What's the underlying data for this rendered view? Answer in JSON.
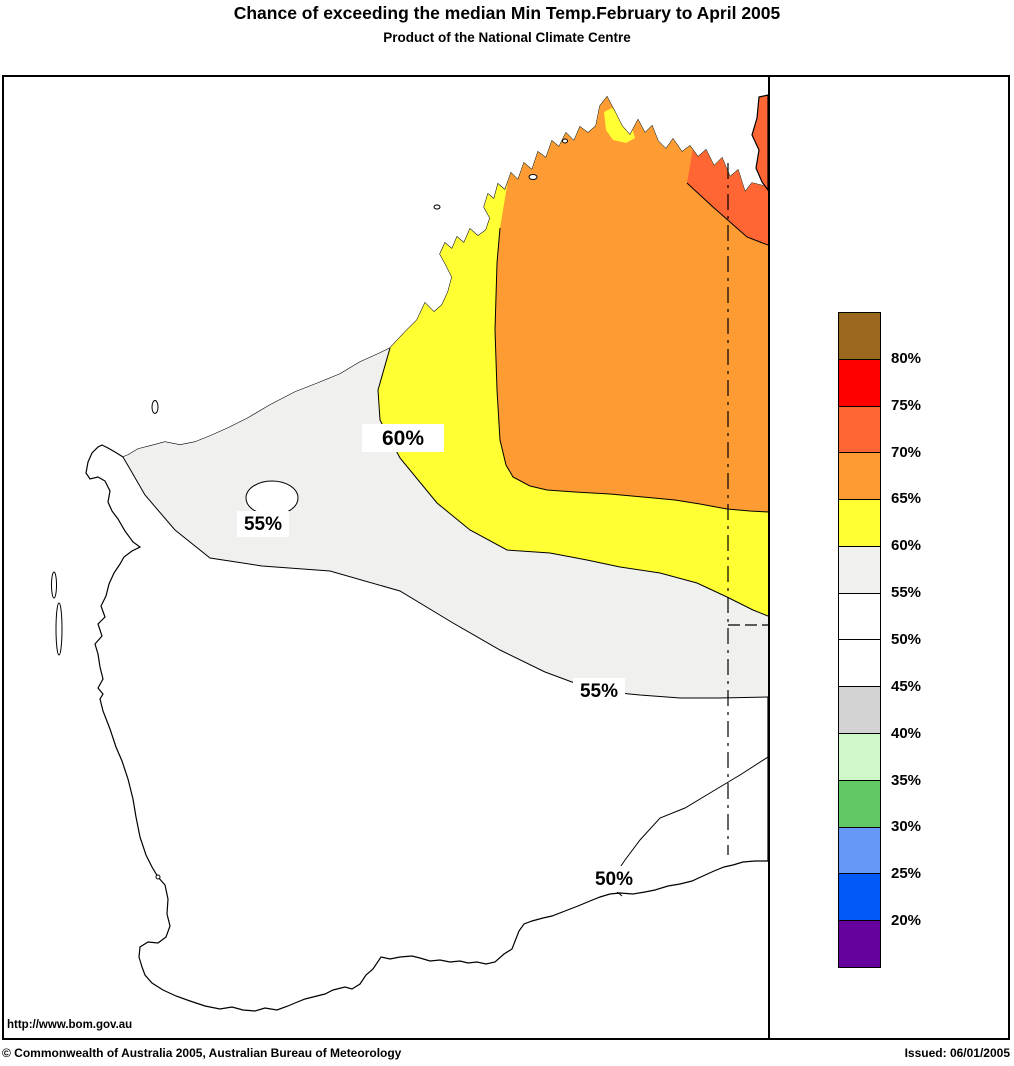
{
  "title": "Chance of exceeding the median Min Temp.February to April 2005",
  "subtitle": "Product of the National Climate Centre",
  "map": {
    "label_60": "60%",
    "label_55a": "55%",
    "label_55b": "55%",
    "label_50": "50%"
  },
  "legend": {
    "labels": [
      "80%",
      "75%",
      "70%",
      "65%",
      "60%",
      "55%",
      "50%",
      "45%",
      "40%",
      "35%",
      "30%",
      "25%",
      "20%"
    ],
    "colors": [
      "#9A671F",
      "#FF0000",
      "#FF6633",
      "#FF9B33",
      "#FFFF33",
      "#F0F0EF",
      "#FFFFFF",
      "#FFFFFF",
      "#D3D3D3",
      "#CFF8C8",
      "#63C765",
      "#6598F8",
      "#0359F5",
      "#65019D"
    ]
  },
  "colors": {
    "ocean": "#FFFFFF",
    "land_default": "#FFFFFF",
    "line": "#000000"
  },
  "footer": {
    "url": "http://www.bom.gov.au",
    "copyright": "© Commonwealth of Australia 2005, Australian Bureau of Meteorology",
    "issued": "Issued: 06/01/2005"
  },
  "chart_data": {
    "type": "contour-map",
    "title": "Chance of exceeding the median Min Temp.February to April 2005",
    "subtitle": "Product of the National Climate Centre",
    "region": "Western Australia",
    "variable": "Chance of exceeding the median minimum temperature (%)",
    "period": "February to April 2005",
    "issued": "06/01/2005",
    "legend_thresholds_percent": [
      80,
      75,
      70,
      65,
      60,
      55,
      50,
      45,
      40,
      35,
      30,
      25,
      20
    ],
    "legend_band_colors_top_to_bottom": [
      "#9A671F",
      "#FF0000",
      "#FF6633",
      "#FF9B33",
      "#FFFF33",
      "#F0F0EF",
      "#FFFFFF",
      "#FFFFFF",
      "#D3D3D3",
      "#CFF8C8",
      "#63C765",
      "#6598F8",
      "#0359F5",
      "#65019D"
    ],
    "contour_labels_on_map_percent": [
      60,
      55,
      55,
      50
    ],
    "shaded_regions": [
      {
        "band": "70-75%",
        "color": "#FF6633",
        "location": "far north-east Kimberley, along NT border"
      },
      {
        "band": "65-70%",
        "color": "#FF9B33",
        "location": "Kimberley and northern interior"
      },
      {
        "band": "60-65%",
        "color": "#FFFF33",
        "location": "arc from north-west coast near Broome curving south-east to the NT/SA border"
      },
      {
        "band": "55-60%",
        "color": "#F0F0EF",
        "location": "central band from Exmouth coast east across the interior; small enclosed sub-55% pocket labelled 55%"
      },
      {
        "band": "50-55%",
        "color": "#FFFFFF",
        "location": "southern third of the state, 50% contour near south coast"
      }
    ],
    "dashed_line": "WA/NT and WA/SA border at 129E with 26S segment"
  }
}
